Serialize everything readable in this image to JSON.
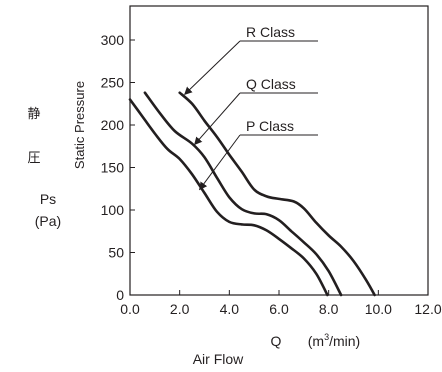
{
  "chart_data": {
    "type": "line",
    "title": "",
    "xlabel": "Air Flow",
    "xlabel_symbol": "Q",
    "xlabel_unit_prefix": "(m",
    "xlabel_unit_sup": "3",
    "xlabel_unit_suffix": "/min)",
    "ylabel": "Static Pressure",
    "ylabel_cjk_1": "静",
    "ylabel_cjk_2": "圧",
    "ylabel_symbol": "Ps",
    "ylabel_unit": "(Pa)",
    "xlim": [
      0,
      12
    ],
    "ylim": [
      0,
      340
    ],
    "xticks": [
      "0.0",
      "2.0",
      "4.0",
      "6.0",
      "8.0",
      "10.0",
      "12.0"
    ],
    "yticks": [
      "0",
      "50",
      "100",
      "150",
      "200",
      "250",
      "300"
    ],
    "grid": false,
    "series": [
      {
        "name": "R Class",
        "values": [
          [
            2.0,
            238
          ],
          [
            2.5,
            225
          ],
          [
            3.0,
            205
          ],
          [
            3.5,
            186
          ],
          [
            4.0,
            165
          ],
          [
            4.5,
            145
          ],
          [
            5.0,
            124
          ],
          [
            5.5,
            116
          ],
          [
            6.0,
            113
          ],
          [
            6.6,
            110
          ],
          [
            7.0,
            102
          ],
          [
            7.5,
            85
          ],
          [
            8.0,
            70
          ],
          [
            8.5,
            57
          ],
          [
            9.0,
            40
          ],
          [
            9.5,
            18
          ],
          [
            9.85,
            0
          ]
        ]
      },
      {
        "name": "Q Class",
        "values": [
          [
            0.6,
            238
          ],
          [
            1.2,
            214
          ],
          [
            1.8,
            193
          ],
          [
            2.5,
            178
          ],
          [
            3.0,
            162
          ],
          [
            3.5,
            138
          ],
          [
            4.0,
            115
          ],
          [
            4.5,
            101
          ],
          [
            5.0,
            96
          ],
          [
            5.5,
            95
          ],
          [
            6.0,
            88
          ],
          [
            6.5,
            75
          ],
          [
            7.0,
            62
          ],
          [
            7.5,
            48
          ],
          [
            8.0,
            28
          ],
          [
            8.5,
            0
          ]
        ]
      },
      {
        "name": "P Class",
        "values": [
          [
            0.0,
            230
          ],
          [
            0.5,
            210
          ],
          [
            1.0,
            190
          ],
          [
            1.5,
            172
          ],
          [
            2.0,
            160
          ],
          [
            2.5,
            142
          ],
          [
            3.0,
            120
          ],
          [
            3.5,
            98
          ],
          [
            4.0,
            86
          ],
          [
            4.5,
            83
          ],
          [
            5.0,
            82
          ],
          [
            5.5,
            76
          ],
          [
            6.0,
            66
          ],
          [
            6.5,
            55
          ],
          [
            7.0,
            43
          ],
          [
            7.5,
            25
          ],
          [
            7.95,
            0
          ]
        ]
      }
    ],
    "annotations": [
      {
        "series": 0,
        "label": "R Class",
        "at": [
          2.2,
          236
        ]
      },
      {
        "series": 1,
        "label": "Q Class",
        "at": [
          2.6,
          177
        ]
      },
      {
        "series": 2,
        "label": "P Class",
        "at": [
          2.8,
          124
        ]
      }
    ]
  }
}
